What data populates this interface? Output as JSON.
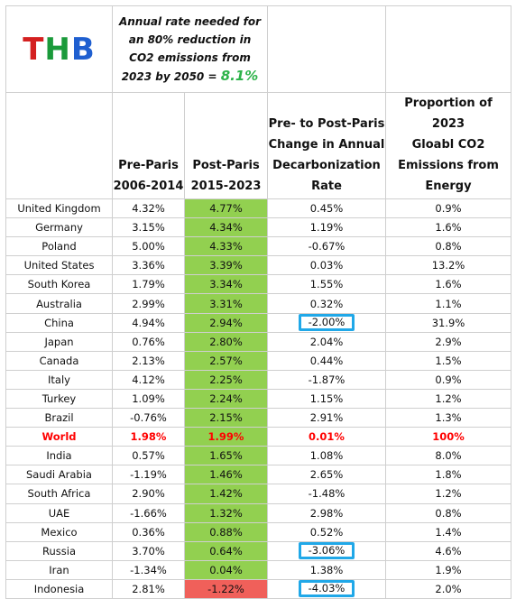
{
  "logo": {
    "letter1": "T",
    "letter2": "H",
    "letter3": "B"
  },
  "note": {
    "text": "Annual rate needed for an 80% reduction in CO2 emissions from 2023 by 2050 = ",
    "rate": "8.1%"
  },
  "headers": {
    "pre": [
      "Pre-Paris",
      "2006-2014"
    ],
    "post": [
      "Post-Paris",
      "2015-2023"
    ],
    "change": [
      "Pre- to Post-Paris",
      "Change in Annual",
      "Decarbonization",
      "Rate"
    ],
    "share": [
      "Proportion of 2023",
      "Gloabl CO2",
      "Emissions from",
      "Energy"
    ]
  },
  "colors": {
    "green_fill": "#92d050",
    "red_fill": "#f0605a",
    "highlight_box": "#20a8e8",
    "world_text": "#ff0000"
  },
  "rows": [
    {
      "country": "United Kingdom",
      "pre": "4.32%",
      "post": "4.77%",
      "change": "0.45%",
      "share": "0.9%"
    },
    {
      "country": "Germany",
      "pre": "3.15%",
      "post": "4.34%",
      "change": "1.19%",
      "share": "1.6%"
    },
    {
      "country": "Poland",
      "pre": "5.00%",
      "post": "4.33%",
      "change": "-0.67%",
      "share": "0.8%"
    },
    {
      "country": "United States",
      "pre": "3.36%",
      "post": "3.39%",
      "change": "0.03%",
      "share": "13.2%"
    },
    {
      "country": "South Korea",
      "pre": "1.79%",
      "post": "3.34%",
      "change": "1.55%",
      "share": "1.6%"
    },
    {
      "country": "Australia",
      "pre": "2.99%",
      "post": "3.31%",
      "change": "0.32%",
      "share": "1.1%"
    },
    {
      "country": "China",
      "pre": "4.94%",
      "post": "2.94%",
      "change": "-2.00%",
      "share": "31.9%",
      "highlight": true
    },
    {
      "country": "Japan",
      "pre": "0.76%",
      "post": "2.80%",
      "change": "2.04%",
      "share": "2.9%"
    },
    {
      "country": "Canada",
      "pre": "2.13%",
      "post": "2.57%",
      "change": "0.44%",
      "share": "1.5%"
    },
    {
      "country": "Italy",
      "pre": "4.12%",
      "post": "2.25%",
      "change": "-1.87%",
      "share": "0.9%"
    },
    {
      "country": "Turkey",
      "pre": "1.09%",
      "post": "2.24%",
      "change": "1.15%",
      "share": "1.2%"
    },
    {
      "country": "Brazil",
      "pre": "-0.76%",
      "post": "2.15%",
      "change": "2.91%",
      "share": "1.3%"
    },
    {
      "country": "World",
      "pre": "1.98%",
      "post": "1.99%",
      "change": "0.01%",
      "share": "100%",
      "world": true
    },
    {
      "country": "India",
      "pre": "0.57%",
      "post": "1.65%",
      "change": "1.08%",
      "share": "8.0%"
    },
    {
      "country": "Saudi Arabia",
      "pre": "-1.19%",
      "post": "1.46%",
      "change": "2.65%",
      "share": "1.8%"
    },
    {
      "country": "South Africa",
      "pre": "2.90%",
      "post": "1.42%",
      "change": "-1.48%",
      "share": "1.2%"
    },
    {
      "country": "UAE",
      "pre": "-1.66%",
      "post": "1.32%",
      "change": "2.98%",
      "share": "0.8%"
    },
    {
      "country": "Mexico",
      "pre": "0.36%",
      "post": "0.88%",
      "change": "0.52%",
      "share": "1.4%"
    },
    {
      "country": "Russia",
      "pre": "3.70%",
      "post": "0.64%",
      "change": "-3.06%",
      "share": "4.6%",
      "highlight": true
    },
    {
      "country": "Iran",
      "pre": "-1.34%",
      "post": "0.04%",
      "change": "1.38%",
      "share": "1.9%"
    },
    {
      "country": "Indonesia",
      "pre": "2.81%",
      "post": "-1.22%",
      "change": "-4.03%",
      "share": "2.0%",
      "highlight": true,
      "negative_post": true
    }
  ]
}
